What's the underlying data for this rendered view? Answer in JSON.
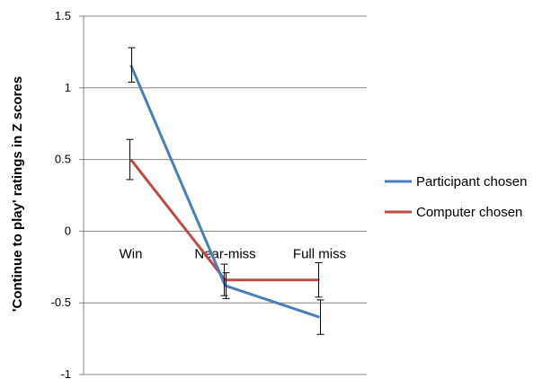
{
  "chart_data": {
    "type": "line",
    "title": "",
    "xlabel": "",
    "ylabel": "'Continue to play' ratings in Z scores",
    "categories": [
      "Win",
      "Near-miss",
      "Full miss"
    ],
    "yticks": [
      "1.5",
      "1",
      "0.5",
      "0",
      "-0.5",
      "-1"
    ],
    "ylim": [
      -1,
      1.5
    ],
    "grid": true,
    "legend_position": "right",
    "series": [
      {
        "name": "Participant chosen",
        "color": "#4a7ebb",
        "values": [
          1.16,
          -0.38,
          -0.6
        ],
        "error": [
          0.12,
          0.09,
          0.12
        ]
      },
      {
        "name": "Computer chosen",
        "color": "#be4b48",
        "values": [
          0.5,
          -0.34,
          -0.34
        ],
        "error": [
          0.14,
          0.11,
          0.12
        ]
      }
    ]
  }
}
